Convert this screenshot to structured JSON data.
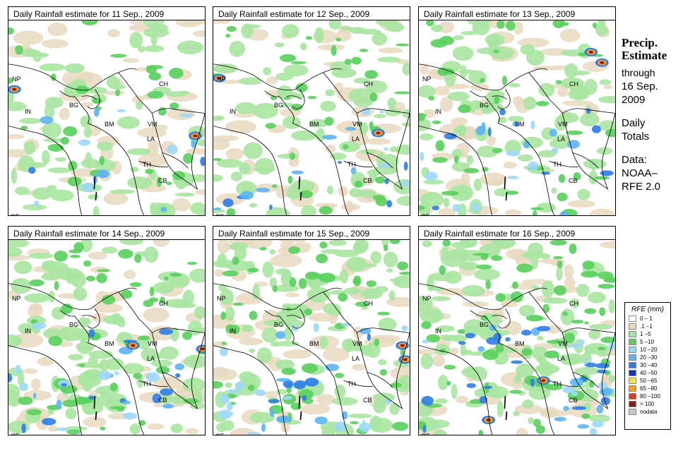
{
  "panels": [
    {
      "title": "Daily Rainfall estimate for  11 Sep., 2009"
    },
    {
      "title": "Daily Rainfall estimate for  12 Sep., 2009"
    },
    {
      "title": "Daily Rainfall estimate for  13 Sep., 2009"
    },
    {
      "title": "Daily Rainfall estimate for  14 Sep., 2009"
    },
    {
      "title": "Daily Rainfall estimate for  15 Sep., 2009"
    },
    {
      "title": "Daily Rainfall estimate for  16 Sep., 2009"
    }
  ],
  "map_labels": {
    "np": "NP",
    "ch": "CH",
    "bg": "BG",
    "in": "IN",
    "bm": "BM",
    "vm": "VM",
    "la": "LA",
    "th": "TH",
    "cb": "CB",
    "ce": "CE"
  },
  "sidebar": {
    "heading1": "Precip.",
    "heading2": "Estimate",
    "through": "through",
    "date1": "16 Sep.",
    "date2": "2009",
    "daily1": "Daily",
    "daily2": "Totals",
    "data1": "Data:",
    "data2": "NOAA–",
    "data3": "RFE 2.0"
  },
  "legend": {
    "title": "RFE (mm)",
    "items": [
      {
        "label": "0 – 1",
        "color": "#ffffff"
      },
      {
        "label": ".1 –1",
        "color": "#e8d9bf"
      },
      {
        "label": "1 –5",
        "color": "#a8e6a0"
      },
      {
        "label": "5 –10",
        "color": "#58d05c"
      },
      {
        "label": "10 –20",
        "color": "#9cd8f8"
      },
      {
        "label": "20 –30",
        "color": "#5cb4f4"
      },
      {
        "label": "30 –40",
        "color": "#2c7ce8"
      },
      {
        "label": "40 –50",
        "color": "#1034c8"
      },
      {
        "label": "50 –65",
        "color": "#f8e048"
      },
      {
        "label": "65 –80",
        "color": "#f8a020"
      },
      {
        "label": "80 –100",
        "color": "#e83818"
      },
      {
        "label": "> 100",
        "color": "#901810"
      },
      {
        "label": "nodata",
        "color": "#c8c8c8"
      }
    ]
  }
}
